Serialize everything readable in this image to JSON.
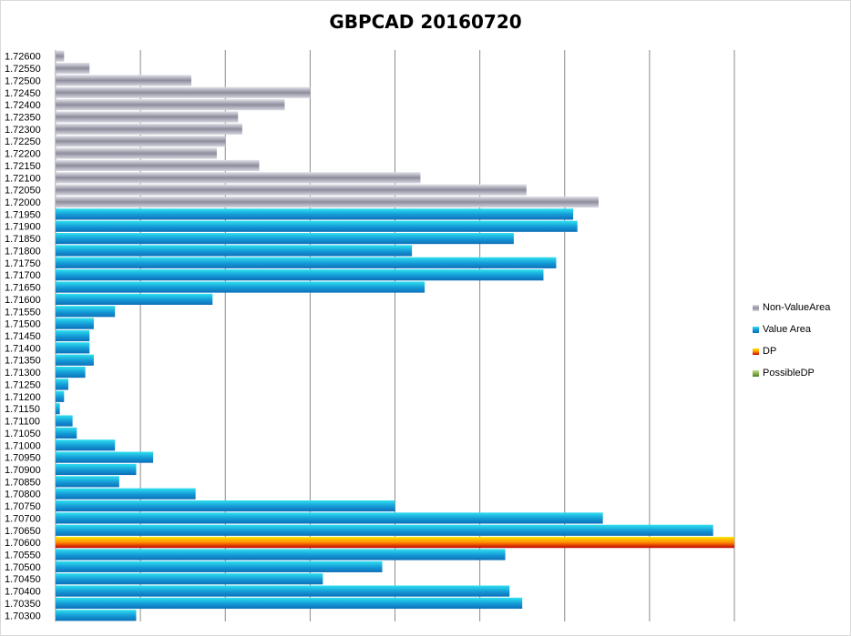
{
  "chart_data": {
    "type": "bar",
    "orientation": "horizontal",
    "title": "GBPCAD 20160720",
    "xlabel": "",
    "ylabel": "",
    "xlim": [
      0,
      320
    ],
    "x_gridlines": [
      0,
      40,
      80,
      120,
      160,
      200,
      240,
      280,
      320
    ],
    "grid": true,
    "legend_position": "right",
    "categories": [
      "1.72600",
      "1.72550",
      "1.72500",
      "1.72450",
      "1.72400",
      "1.72350",
      "1.72300",
      "1.72250",
      "1.72200",
      "1.72150",
      "1.72100",
      "1.72050",
      "1.72000",
      "1.71950",
      "1.71900",
      "1.71850",
      "1.71800",
      "1.71750",
      "1.71700",
      "1.71650",
      "1.71600",
      "1.71550",
      "1.71500",
      "1.71450",
      "1.71400",
      "1.71350",
      "1.71300",
      "1.71250",
      "1.71200",
      "1.71150",
      "1.71100",
      "1.71050",
      "1.71000",
      "1.70950",
      "1.70900",
      "1.70850",
      "1.70800",
      "1.70750",
      "1.70700",
      "1.70650",
      "1.70600",
      "1.70550",
      "1.70500",
      "1.70450",
      "1.70400",
      "1.70350",
      "1.70300"
    ],
    "values": [
      4,
      16,
      64,
      120,
      108,
      86,
      88,
      80,
      76,
      96,
      172,
      222,
      256,
      244,
      246,
      216,
      168,
      236,
      230,
      174,
      74,
      28,
      18,
      16,
      16,
      18,
      14,
      6,
      4,
      2,
      8,
      10,
      28,
      46,
      38,
      30,
      66,
      160,
      258,
      310,
      320,
      212,
      154,
      126,
      214,
      220,
      38
    ],
    "zones": [
      "Non-ValueArea",
      "Non-ValueArea",
      "Non-ValueArea",
      "Non-ValueArea",
      "Non-ValueArea",
      "Non-ValueArea",
      "Non-ValueArea",
      "Non-ValueArea",
      "Non-ValueArea",
      "Non-ValueArea",
      "Non-ValueArea",
      "Non-ValueArea",
      "Non-ValueArea",
      "Value Area",
      "Value Area",
      "Value Area",
      "Value Area",
      "Value Area",
      "Value Area",
      "Value Area",
      "Value Area",
      "Value Area",
      "Value Area",
      "Value Area",
      "Value Area",
      "Value Area",
      "Value Area",
      "Value Area",
      "Value Area",
      "Value Area",
      "Value Area",
      "Value Area",
      "Value Area",
      "Value Area",
      "Value Area",
      "Value Area",
      "Value Area",
      "Value Area",
      "Value Area",
      "Value Area",
      "DP",
      "Value Area",
      "Value Area",
      "Value Area",
      "Value Area",
      "Value Area",
      "Value Area"
    ],
    "series": [
      {
        "name": "Non-ValueArea",
        "color": "#a6a6b4"
      },
      {
        "name": "Value Area",
        "color": "#1a9ed8"
      },
      {
        "name": "DP",
        "color": "#ff9a00"
      },
      {
        "name": "PossibleDP",
        "color": "#76a531"
      }
    ]
  }
}
